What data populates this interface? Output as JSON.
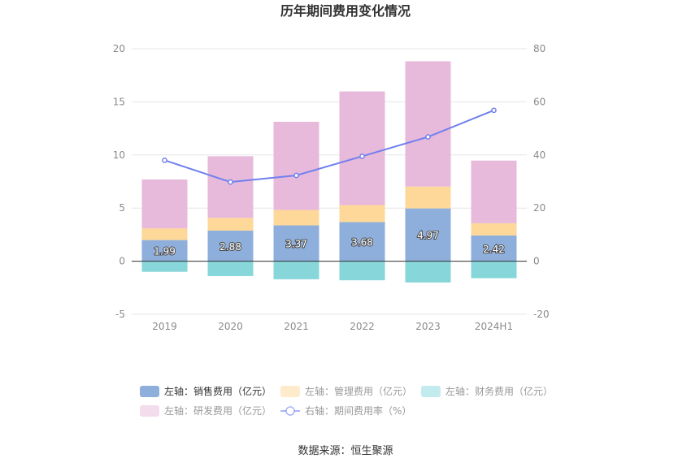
{
  "chart_data": {
    "type": "bar",
    "title": "历年期间费用变化情况",
    "categories": [
      "2019",
      "2020",
      "2021",
      "2022",
      "2023",
      "2024H1"
    ],
    "left_axis": {
      "ylim": [
        -5,
        20
      ],
      "ticks": [
        "-5",
        "0",
        "5",
        "10",
        "15",
        "20"
      ]
    },
    "right_axis": {
      "ylim": [
        -20,
        80
      ],
      "ticks": [
        "-20",
        "0",
        "20",
        "40",
        "60",
        "80"
      ]
    },
    "series": [
      {
        "name": "左轴：销售费用（亿元）",
        "type": "bar",
        "axis": "left",
        "color": "#8eaedc",
        "values": [
          1.99,
          2.88,
          3.37,
          3.68,
          4.97,
          2.42
        ],
        "labels": [
          "1.99",
          "2.88",
          "3.37",
          "3.68",
          "4.97",
          "2.42"
        ]
      },
      {
        "name": "左轴：管理费用（亿元）",
        "type": "bar",
        "axis": "left",
        "color": "#fed899",
        "values": [
          1.1,
          1.2,
          1.45,
          1.6,
          2.05,
          1.15
        ]
      },
      {
        "name": "左轴：财务费用（亿元）",
        "type": "bar",
        "axis": "left",
        "color": "#87d6d9",
        "values": [
          -1.0,
          -1.4,
          -1.7,
          -1.8,
          -2.0,
          -1.6
        ]
      },
      {
        "name": "左轴：研发费用（亿元）",
        "type": "bar",
        "axis": "left",
        "color": "#e7b9da",
        "values": [
          4.6,
          5.8,
          8.3,
          10.7,
          11.8,
          5.9
        ]
      },
      {
        "name": "右轴：期间费用率（%）",
        "type": "line",
        "axis": "right",
        "color": "#7180ef",
        "values": [
          38.0,
          29.8,
          32.3,
          39.5,
          46.8,
          56.8
        ]
      }
    ],
    "legend_position": "bottom"
  },
  "source": "数据来源：恒生聚源",
  "colors": {
    "grid": "#e6e6e6",
    "zero_line": "#333333"
  }
}
